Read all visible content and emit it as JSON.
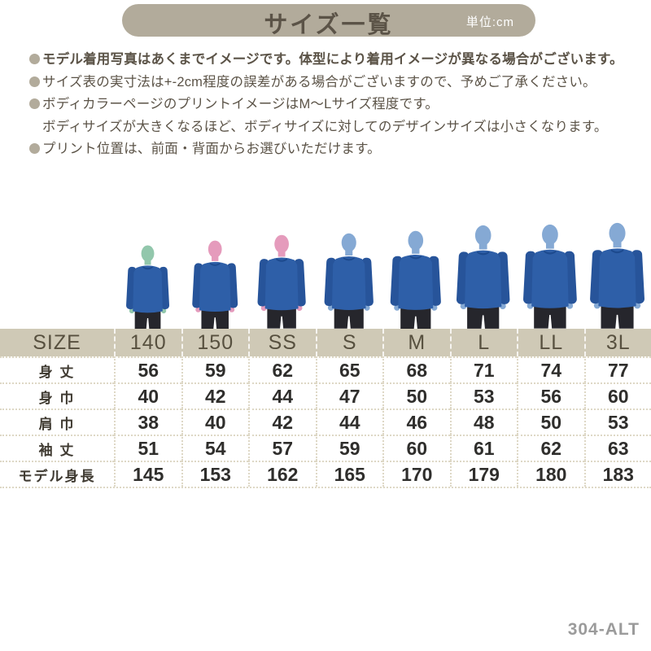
{
  "header": {
    "title": "サイズ一覧",
    "unit": "単位:cm"
  },
  "notes": [
    {
      "text": "モデル着用写真はあくまでイメージです。体型により着用イメージが異なる場合がございます。",
      "bullet": true,
      "bold": true
    },
    {
      "text": "サイズ表の実寸法は+-2cm程度の誤差がある場合がございますので、予めご了承ください。",
      "bullet": true,
      "bold": false
    },
    {
      "text": "ボディカラーページのプリントイメージはM〜Lサイズ程度です。",
      "bullet": true,
      "bold": false
    },
    {
      "text": "ボディサイズが大きくなるほど、ボディサイズに対してのデザインサイズは小さくなります。",
      "bullet": false,
      "bold": false
    },
    {
      "text": "プリント位置は、前面・背面からお選びいただけます。",
      "bullet": true,
      "bold": false
    }
  ],
  "models": [
    {
      "size": "140",
      "height_cm": 145,
      "head_color": "#92c7ac"
    },
    {
      "size": "150",
      "height_cm": 153,
      "head_color": "#e59bbc"
    },
    {
      "size": "SS",
      "height_cm": 162,
      "head_color": "#e59bbc"
    },
    {
      "size": "S",
      "height_cm": 165,
      "head_color": "#85a9d4"
    },
    {
      "size": "M",
      "height_cm": 170,
      "head_color": "#85a9d4"
    },
    {
      "size": "L",
      "height_cm": 179,
      "head_color": "#85a9d4"
    },
    {
      "size": "LL",
      "height_cm": 180,
      "head_color": "#85a9d4"
    },
    {
      "size": "3L",
      "height_cm": 183,
      "head_color": "#85a9d4"
    }
  ],
  "size_table": {
    "header": [
      "SIZE",
      "140",
      "150",
      "SS",
      "S",
      "M",
      "L",
      "LL",
      "3L"
    ],
    "rows": [
      {
        "label": "身 丈",
        "values": [
          "56",
          "59",
          "62",
          "65",
          "68",
          "71",
          "74",
          "77"
        ]
      },
      {
        "label": "身 巾",
        "values": [
          "40",
          "42",
          "44",
          "47",
          "50",
          "53",
          "56",
          "60"
        ]
      },
      {
        "label": "肩 巾",
        "values": [
          "38",
          "40",
          "42",
          "44",
          "46",
          "48",
          "50",
          "53"
        ]
      },
      {
        "label": "袖 丈",
        "values": [
          "51",
          "54",
          "57",
          "59",
          "60",
          "61",
          "62",
          "63"
        ]
      },
      {
        "label": "モデル身長",
        "values": [
          "145",
          "153",
          "162",
          "165",
          "170",
          "179",
          "180",
          "183"
        ]
      }
    ]
  },
  "product_code": "304-ALT",
  "colors": {
    "banner_bg": "#b2ab9b",
    "table_header_bg": "#cfc9b6",
    "text_brown": "#5b5347",
    "shirt_blue": "#2e5fa8",
    "shirt_dark": "#27549a",
    "collar_dark": "#1d4a8e",
    "pants_dark": "#26262c",
    "head_mint": "#92c7ac",
    "head_pink": "#e59bbc",
    "head_blue": "#85a9d4",
    "dotted_line": "#ded8c6",
    "code_gray": "#9b9b9b"
  }
}
